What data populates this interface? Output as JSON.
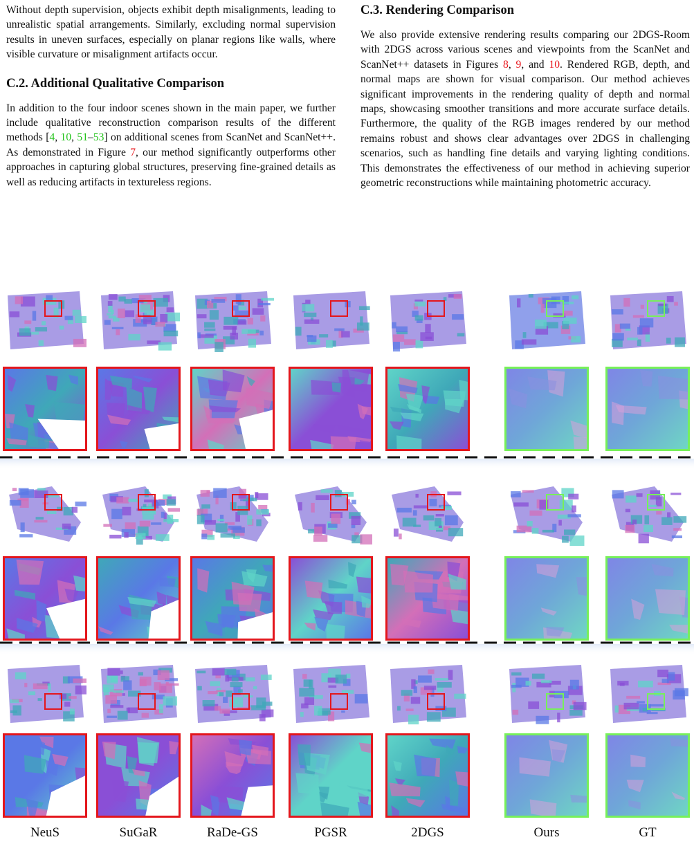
{
  "left_column": {
    "para1": "Without depth supervision, objects exhibit depth misalignments, leading to unrealistic spatial arrangements. Similarly, excluding normal supervision results in uneven surfaces, especially on planar regions like walls, where visible curvature or misalignment artifacts occur.",
    "heading_c2": "C.2. Additional Qualitative Comparison",
    "para2_a": "In addition to the four indoor scenes shown in the main paper, we further include qualitative reconstruction comparison results of the different methods [",
    "ref_4": "4",
    "sep1": ", ",
    "ref_10": "10",
    "sep2": ", ",
    "ref_51": "51",
    "dash": "–",
    "ref_53": "53",
    "para2_b": "] on additional scenes from ScanNet and ScanNet++. As demonstrated in Figure ",
    "ref_fig7": "7",
    "para2_c": ", our method significantly outperforms other approaches in capturing global structures, preserving fine-grained details as well as reducing artifacts in textureless regions."
  },
  "right_column": {
    "heading_c3": "C.3. Rendering Comparison",
    "para_a": "We also provide extensive rendering results comparing our 2DGS-Room with 2DGS across various scenes and viewpoints from the ScanNet and ScanNet++ datasets in Figures ",
    "ref_fig8": "8",
    "sep1": ", ",
    "ref_fig9": "9",
    "sep2": ", and ",
    "ref_fig10": "10",
    "para_b": ". Rendered RGB, depth, and normal maps are shown for visual comparison. Our method achieves significant improvements in the rendering quality of depth and normal maps, showcasing smoother transitions and more accurate surface details. Furthermore, the quality of the RGB images rendered by our method remains robust and shows clear advantages over 2DGS in challenging scenarios, such as handling fine details and varying lighting conditions. This demonstrates the effectiveness of our method in achieving superior geometric reconstructions while maintaining photometric accuracy."
  },
  "figure": {
    "methods": [
      "NeuS",
      "SuGaR",
      "RaDe-GS",
      "PGSR",
      "2DGS",
      "Ours",
      "GT"
    ],
    "highlight_colors": [
      "red",
      "red",
      "red",
      "red",
      "red",
      "green",
      "green"
    ],
    "colors": {
      "red_box": "#e4161c",
      "green_box": "#77f05a",
      "normal_purple": "#8a4fd6",
      "normal_blue": "#5a78e6",
      "normal_cyan": "#5fd4c8",
      "normal_pink": "#d36fb8",
      "normal_teal": "#3fa8b8"
    }
  }
}
